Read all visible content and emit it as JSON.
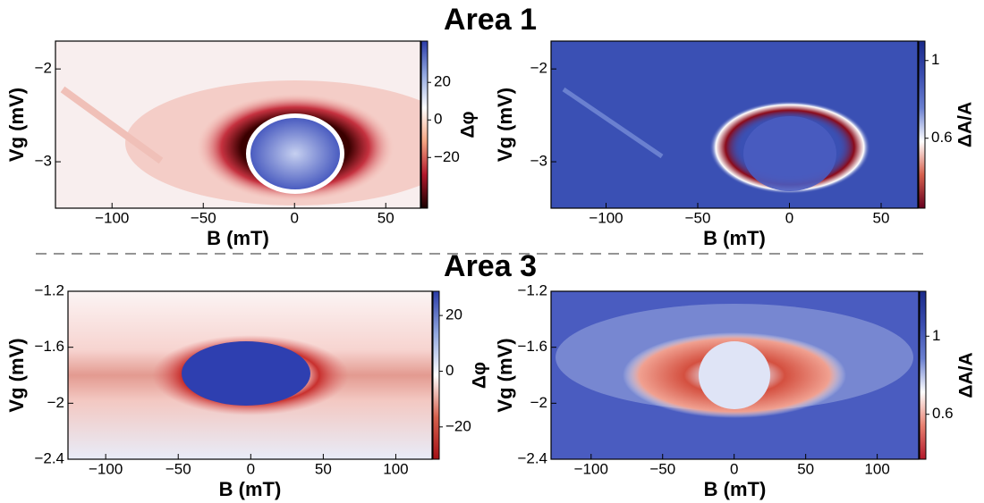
{
  "sections": [
    {
      "title": "Area 1"
    },
    {
      "title": "Area 3"
    }
  ],
  "chart_data": [
    {
      "type": "heatmap",
      "xlabel": "B (mT)",
      "ylabel": "Vg (mV)",
      "colorbar_label": "Δφ",
      "xlim": [
        -131,
        69
      ],
      "xticks": [
        {
          "value": -100,
          "label": "−100"
        },
        {
          "value": -50,
          "label": "−50"
        },
        0,
        50
      ],
      "ylim": [
        -3.5,
        -1.7
      ],
      "yticks": [
        {
          "value": -2,
          "label": "−2"
        },
        {
          "value": -3,
          "label": "−3"
        }
      ],
      "clim": [
        -47,
        42
      ],
      "cticks": [
        20,
        0,
        {
          "value": -20,
          "label": "−20"
        }
      ],
      "colormap": [
        "#1a0000",
        "#b2182b",
        "#f4a582",
        "#ffffff",
        "#92a8e0",
        "#2b3ca8"
      ]
    },
    {
      "type": "heatmap",
      "xlabel": "B (mT)",
      "ylabel": "Vg (mV)",
      "colorbar_label": "ΔA/A",
      "xlim": [
        -130,
        70
      ],
      "xticks": [
        {
          "value": -100,
          "label": "−100"
        },
        {
          "value": -50,
          "label": "−50"
        },
        0,
        50
      ],
      "ylim": [
        -3.5,
        -1.7
      ],
      "yticks": [
        {
          "value": -2,
          "label": "−2"
        },
        {
          "value": -3,
          "label": "−3"
        }
      ],
      "clim": [
        0.24,
        1.1
      ],
      "cticks": [
        1,
        0.6
      ],
      "colormap": [
        "#67001f",
        "#d6604d",
        "#ffffff",
        "#6a7fd0",
        "#3a4db0",
        "#1a2a8a"
      ]
    },
    {
      "type": "heatmap",
      "xlabel": "B (mT)",
      "ylabel": "Vg (mV)",
      "colorbar_label": "Δφ",
      "xlim": [
        -126,
        125
      ],
      "xticks": [
        {
          "value": -100,
          "label": "−100"
        },
        {
          "value": -50,
          "label": "−50"
        },
        0,
        50,
        100
      ],
      "ylim": [
        -2.4,
        -1.2
      ],
      "yticks": [
        {
          "value": -1.2,
          "label": "−1.2"
        },
        {
          "value": -1.6,
          "label": "−1.6"
        },
        {
          "value": -2,
          "label": "−2"
        },
        {
          "value": -2.4,
          "label": "−2.4"
        }
      ],
      "clim": [
        -31.6,
        28.7
      ],
      "cticks": [
        20,
        0,
        {
          "value": -20,
          "label": "−20"
        }
      ],
      "colormap": [
        "#a50f15",
        "#d6604d",
        "#ffffff",
        "#92a8e0",
        "#2b3ca8"
      ]
    },
    {
      "type": "heatmap",
      "xlabel": "B (mT)",
      "ylabel": "Vg (mV)",
      "colorbar_label": "ΔA/A",
      "xlim": [
        -128,
        129
      ],
      "xticks": [
        {
          "value": -100,
          "label": "−100"
        },
        {
          "value": -50,
          "label": "−50"
        },
        0,
        50,
        100
      ],
      "ylim": [
        -2.4,
        -1.2
      ],
      "yticks": [
        {
          "value": -1.2,
          "label": "−1.2"
        },
        {
          "value": -1.6,
          "label": "−1.6"
        },
        {
          "value": -2,
          "label": "−2"
        },
        {
          "value": -2.4,
          "label": "−2.4"
        }
      ],
      "clim": [
        0.37,
        1.23
      ],
      "cticks": [
        1,
        0.6
      ],
      "colormap": [
        "#b2182b",
        "#e88070",
        "#ffffff",
        "#6a7fd0",
        "#3a4db0",
        "#1a2a8a"
      ]
    }
  ]
}
